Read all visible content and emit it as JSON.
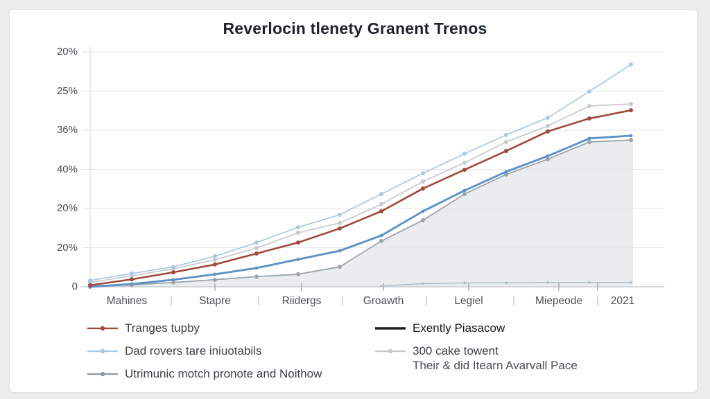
{
  "page": {
    "background": "#ededee",
    "card_background": "#fefefe"
  },
  "chart_data": {
    "type": "line",
    "title": "Reverlocin tlenety Granent Trenos",
    "x_categories": [
      "Mahines",
      "Stapre",
      "Riidergs",
      "Groawth",
      "Legiel",
      "Miepeode",
      "2021"
    ],
    "x_separator_glyph": "|",
    "y_tick_labels_top_to_bottom": [
      "20%",
      "25%",
      "36%",
      "40%",
      "20%",
      "20%",
      "0"
    ],
    "y_axis_unit_per_gridline": 1,
    "ylim_grid_units": [
      0,
      6
    ],
    "grid": true,
    "legend_position": "bottom",
    "series": [
      {
        "id": "tranges",
        "name": "Tranges tupby",
        "color": "#a0483c",
        "marker": true,
        "line_width": 2.6,
        "area_fill": false,
        "values_grid_units": [
          0.04,
          0.19,
          0.37,
          0.57,
          0.85,
          1.13,
          1.49,
          1.93,
          2.51,
          2.99,
          3.47,
          3.97,
          4.3,
          4.51
        ]
      },
      {
        "id": "dad",
        "name": "Dad rovers tare iniuotabils",
        "color": "#aac8e4",
        "marker": true,
        "line_width": 1.7,
        "area_fill": false,
        "values_grid_units": [
          0.16,
          0.34,
          0.51,
          0.78,
          1.13,
          1.52,
          1.84,
          2.37,
          2.9,
          3.4,
          3.88,
          4.32,
          4.99,
          5.68
        ]
      },
      {
        "id": "utrimunic",
        "name": "Utrimunic motch pronote and Noithow",
        "color": "#99a5ac",
        "marker": true,
        "line_width": 1.8,
        "area_fill": true,
        "area_color": "#ebeced",
        "values_grid_units": [
          0.0,
          0.05,
          0.11,
          0.18,
          0.26,
          0.32,
          0.51,
          1.17,
          1.7,
          2.37,
          2.87,
          3.26,
          3.7,
          3.75
        ]
      },
      {
        "id": "exently",
        "name": "Exently Piasacow",
        "color": "#5e92c6",
        "marker": true,
        "line_width": 2.9,
        "area_fill": false,
        "values_grid_units": [
          0.0,
          0.07,
          0.18,
          0.32,
          0.48,
          0.7,
          0.92,
          1.31,
          1.93,
          2.46,
          2.94,
          3.34,
          3.79,
          3.86
        ]
      },
      {
        "id": "cake",
        "name": "300 cake towent Their & did Itearn Avarvall Pace",
        "color": "#c5cacd",
        "marker": true,
        "line_width": 1.7,
        "area_fill": false,
        "values_grid_units": [
          0.11,
          0.28,
          0.46,
          0.69,
          0.99,
          1.38,
          1.63,
          2.11,
          2.69,
          3.17,
          3.7,
          4.11,
          4.62,
          4.67
        ]
      },
      {
        "id": "baseline",
        "name": "flat-baseline-series",
        "color": "#a7bec9",
        "marker": true,
        "line_width": 1.5,
        "area_fill": false,
        "values_grid_units": [
          null,
          null,
          null,
          null,
          null,
          null,
          null,
          0.02,
          0.08,
          0.1,
          0.1,
          0.11,
          0.11,
          0.11
        ]
      }
    ]
  },
  "legend": {
    "columns": [
      {
        "items": [
          {
            "label": "Tranges tupby",
            "color": "#a0483c",
            "style": "line-dot",
            "dark_text": false
          },
          {
            "label": "Dad rovers tare iniuotabils",
            "color": "#aac8e4",
            "style": "line-dot",
            "dark_text": false
          },
          {
            "label": "Utrimunic motch pronote and Noithow",
            "color": "#8d99a1",
            "style": "line-dot",
            "dark_text": false
          }
        ]
      },
      {
        "items": [
          {
            "label": "Exently Piasacow",
            "color": "#1b1b1b",
            "style": "solid-thick",
            "dark_text": true
          },
          {
            "label": "300 cake towent",
            "label2": "Their & did Itearn Avarvall Pace",
            "color": "#c2c7ca",
            "style": "line-dot",
            "dark_text": false
          }
        ]
      }
    ]
  },
  "colors": {
    "gridline": "#e6e7e8",
    "axis_line": "#c7ccce",
    "tick_mark": "#9aa0a4",
    "title_text": "#1d232e",
    "tick_text": "#4b4f54",
    "legend_text": "#3d4247"
  }
}
